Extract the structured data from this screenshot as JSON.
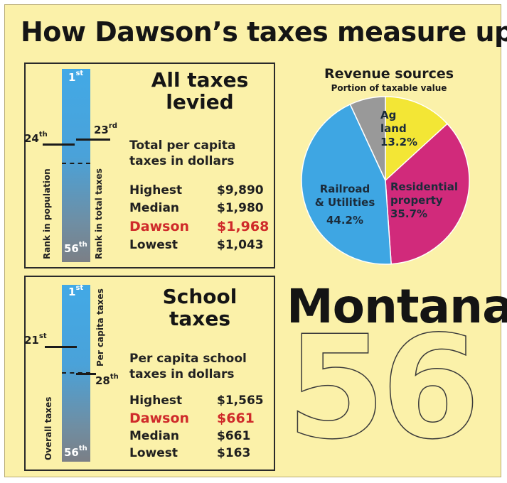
{
  "headline": "How Dawson’s taxes measure up",
  "all_taxes": {
    "title_line1": "All taxes",
    "title_line2": "levied",
    "subtitle_line1": "Total per capita",
    "subtitle_line2": "taxes in dollars",
    "bar": {
      "top_rank": "1",
      "top_suffix": "st",
      "bottom_rank": "56",
      "bottom_suffix": "th",
      "population_rank": "24",
      "population_suffix": "th",
      "total_taxes_rank": "23",
      "total_taxes_suffix": "rd",
      "left_axis_label": "Rank in population",
      "right_axis_label": "Rank in total taxes"
    },
    "rows": [
      {
        "label": "Highest",
        "value": "$9,890",
        "highlight": false
      },
      {
        "label": "Median",
        "value": "$1,980",
        "highlight": false
      },
      {
        "label": "Dawson",
        "value": "$1,968",
        "highlight": true
      },
      {
        "label": "Lowest",
        "value": "$1,043",
        "highlight": false
      }
    ]
  },
  "school_taxes": {
    "title_line1": "School",
    "title_line2": "taxes",
    "subtitle_line1": "Per capita school",
    "subtitle_line2": "taxes in dollars",
    "bar": {
      "top_rank": "1",
      "top_suffix": "st",
      "bottom_rank": "56",
      "bottom_suffix": "th",
      "overall_rank": "21",
      "overall_suffix": "st",
      "per_capita_rank": "28",
      "per_capita_suffix": "th",
      "left_axis_label": "Overall taxes",
      "right_axis_label": "Per capita taxes"
    },
    "rows": [
      {
        "label": "Highest",
        "value": "$1,565",
        "highlight": false
      },
      {
        "label": "Dawson",
        "value": "$661",
        "highlight": true
      },
      {
        "label": "Median",
        "value": "$661",
        "highlight": false
      },
      {
        "label": "Lowest",
        "value": "$163",
        "highlight": false
      }
    ]
  },
  "montana": "Montana",
  "county_count": "56",
  "chart_data": {
    "type": "pie",
    "title": "Revenue sources",
    "subtitle": "Portion of taxable value",
    "slices": [
      {
        "label_lines": [
          "Ag",
          "land"
        ],
        "value": 13.2,
        "value_label": "13.2%",
        "color": "#f3e635"
      },
      {
        "label_lines": [
          "Residential",
          "property"
        ],
        "value": 35.7,
        "value_label": "35.7%",
        "color": "#d12a7b"
      },
      {
        "label_lines": [
          "Railroad",
          "& Utilities"
        ],
        "value": 44.2,
        "value_label": "44.2%",
        "color": "#3ea6e3"
      },
      {
        "label_lines": [],
        "value": 6.9,
        "value_label": "",
        "color": "#999999"
      }
    ]
  },
  "colors": {
    "background": "#fbf1a9",
    "highlight_red": "#cf2a2a",
    "bar_blue": "#42a9e6"
  }
}
